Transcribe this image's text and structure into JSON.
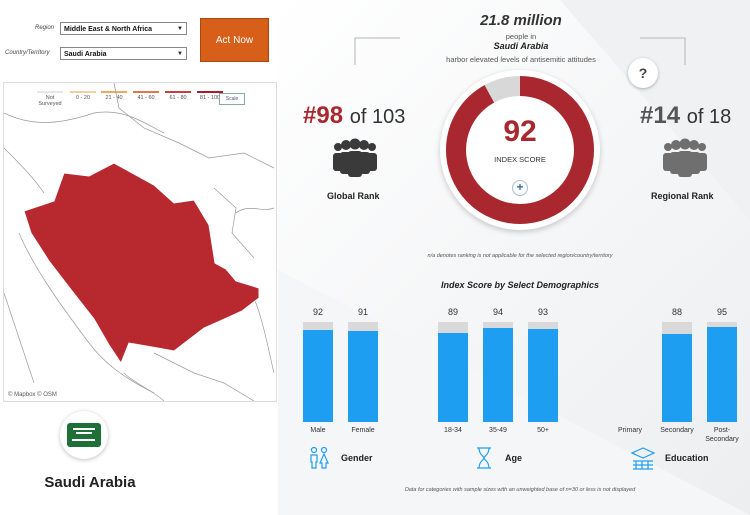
{
  "controls": {
    "region_label": "Region",
    "region_value": "Middle East & North Africa",
    "country_label": "Country/Territory",
    "country_value": "Saudi Arabia",
    "act_button": "Act Now"
  },
  "map": {
    "legend": [
      {
        "label": "Not Surveyed",
        "color": "#e8e8e8"
      },
      {
        "label": "0 - 20",
        "color": "#f1d39a"
      },
      {
        "label": "21 - 40",
        "color": "#e9a967"
      },
      {
        "label": "41 - 60",
        "color": "#dd7a4c"
      },
      {
        "label": "61 - 80",
        "color": "#c4413c"
      },
      {
        "label": "81 - 100",
        "color": "#a41e2c"
      }
    ],
    "scale_label": "Scale",
    "attribution": "© Mapbox © OSM",
    "highlight_color": "#b8282f"
  },
  "country": {
    "name": "Saudi Arabia",
    "flag_color": "#1e6f38"
  },
  "header": {
    "population": "21.8 million",
    "line1": "people in",
    "country": "Saudi Arabia",
    "line3": "harbor elevated levels of antisemitic attitudes"
  },
  "global_rank": {
    "rank": "#98",
    "of_text": "of 103",
    "caption": "Global Rank"
  },
  "regional_rank": {
    "rank": "#14",
    "of_text": "of 18",
    "caption": "Regional Rank",
    "help": "?"
  },
  "index": {
    "score": "92",
    "label": "INDEX SCORE",
    "fraction": 0.92,
    "expand": "+"
  },
  "na_note": "n/a denotes ranking is not applicable for the selected region/country/territory",
  "demographics": {
    "title": "Index Score by Select Demographics",
    "groups": [
      {
        "name": "Gender",
        "icon": "gender-icon",
        "bars": [
          {
            "label": "Male",
            "value": 92
          },
          {
            "label": "Female",
            "value": 91
          }
        ]
      },
      {
        "name": "Age",
        "icon": "hourglass-icon",
        "bars": [
          {
            "label": "18-34",
            "value": 89
          },
          {
            "label": "35-49",
            "value": 94
          },
          {
            "label": "50+",
            "value": 93
          }
        ]
      },
      {
        "name": "Education",
        "icon": "education-icon",
        "bars": [
          {
            "label": "Primary",
            "value": null
          },
          {
            "label": "Secondary",
            "value": 88
          },
          {
            "label": "Post-Secondary",
            "value": 95
          }
        ]
      }
    ],
    "footnote": "Data for categories with sample sizes with an unweighted base of n=30 or less is not displayed"
  },
  "colors": {
    "accent": "#a9282f",
    "bar": "#1e9ef0",
    "button": "#d85f1a"
  }
}
